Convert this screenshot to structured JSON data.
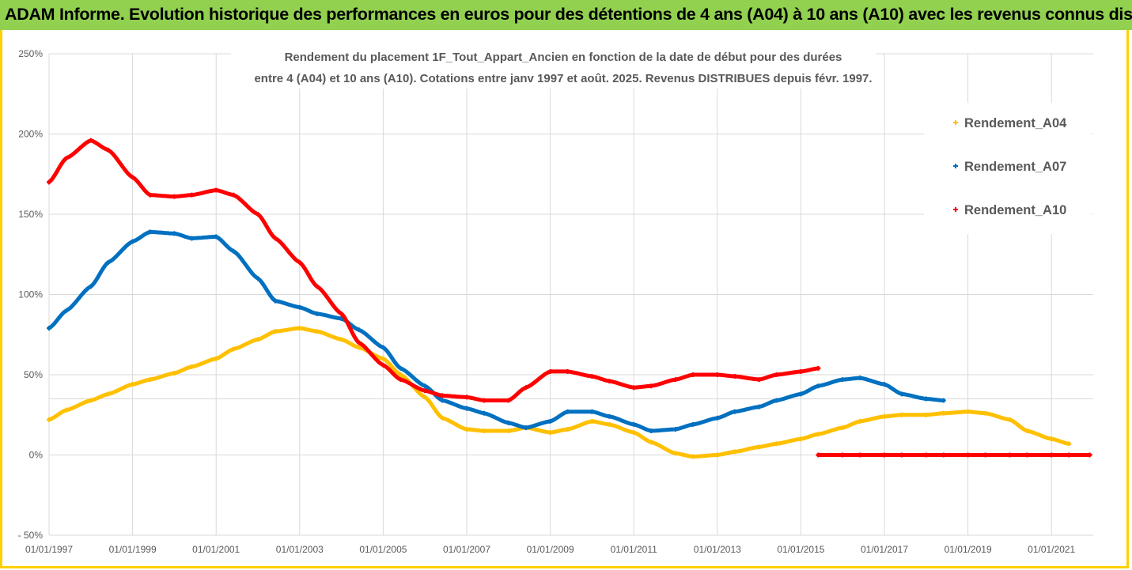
{
  "header": {
    "title": "ADAM Informe. Evolution historique des performances en euros pour des détentions de 4 ans (A04) à 10 ans (A10) avec les revenus connus distribués"
  },
  "colors": {
    "header_bg": "#92d050",
    "frame": "#ffd000",
    "grid": "#d9d9d9",
    "text": "#595959"
  },
  "chart_data": {
    "type": "scatter",
    "title_lines": [
      "Rendement du placement 1F_Tout_Appart_Ancien en fonction de la date de début pour des durées",
      "entre 4 (A04) et 10 ans (A10). Cotations entre janv 1997 et août. 2025. Revenus DISTRIBUES depuis févr. 1997."
    ],
    "xlabel": "",
    "ylabel": "",
    "x_ticks": [
      "01/01/1997",
      "01/01/1999",
      "01/01/2001",
      "01/01/2003",
      "01/01/2005",
      "01/01/2007",
      "01/01/2009",
      "01/01/2011",
      "01/01/2013",
      "01/01/2015",
      "01/01/2017",
      "01/01/2019",
      "01/01/2021"
    ],
    "y_ticks": [
      "250%",
      "200%",
      "150%",
      "100%",
      "50%",
      "0%",
      "- 50%"
    ],
    "xlim": [
      "1997-01-01",
      "2022-01-01"
    ],
    "ylim": [
      -50,
      250
    ],
    "y_unit": "%",
    "grid": true,
    "legend_position": "right",
    "series": [
      {
        "name": "Rendement_A04",
        "color": "#ffc000",
        "x": [
          "1997-01",
          "1997-06",
          "1998-01",
          "1998-06",
          "1999-01",
          "1999-06",
          "2000-01",
          "2000-06",
          "2001-01",
          "2001-06",
          "2002-01",
          "2002-06",
          "2003-01",
          "2003-06",
          "2004-01",
          "2004-06",
          "2005-01",
          "2005-06",
          "2006-01",
          "2006-06",
          "2007-01",
          "2007-06",
          "2008-01",
          "2008-06",
          "2009-01",
          "2009-06",
          "2010-01",
          "2010-06",
          "2011-01",
          "2011-06",
          "2012-01",
          "2012-06",
          "2013-01",
          "2013-06",
          "2014-01",
          "2014-06",
          "2015-01",
          "2015-06",
          "2016-01",
          "2016-06",
          "2017-01",
          "2017-06",
          "2018-01",
          "2018-06",
          "2019-01",
          "2019-06",
          "2020-01",
          "2020-06",
          "2021-01",
          "2021-06"
        ],
        "y": [
          22,
          28,
          34,
          38,
          44,
          47,
          51,
          55,
          60,
          66,
          72,
          77,
          79,
          77,
          72,
          67,
          60,
          50,
          36,
          23,
          16,
          15,
          15,
          17,
          14,
          16,
          21,
          19,
          14,
          8,
          1,
          -1,
          0,
          2,
          5,
          7,
          10,
          13,
          17,
          21,
          24,
          25,
          25,
          26,
          27,
          26,
          22,
          15,
          10,
          7
        ]
      },
      {
        "name": "Rendement_A07",
        "color": "#0070c0",
        "x": [
          "1997-01",
          "1997-06",
          "1998-01",
          "1998-06",
          "1999-01",
          "1999-06",
          "2000-01",
          "2000-06",
          "2001-01",
          "2001-06",
          "2002-01",
          "2002-06",
          "2003-01",
          "2003-06",
          "2004-01",
          "2004-06",
          "2005-01",
          "2005-06",
          "2006-01",
          "2006-06",
          "2007-01",
          "2007-06",
          "2008-01",
          "2008-06",
          "2009-01",
          "2009-06",
          "2010-01",
          "2010-06",
          "2011-01",
          "2011-06",
          "2012-01",
          "2012-06",
          "2013-01",
          "2013-06",
          "2014-01",
          "2014-06",
          "2015-01",
          "2015-06",
          "2016-01",
          "2016-06",
          "2017-01",
          "2017-06",
          "2018-01",
          "2018-06"
        ],
        "y": [
          79,
          90,
          105,
          120,
          133,
          139,
          138,
          135,
          136,
          127,
          110,
          96,
          92,
          88,
          85,
          78,
          67,
          54,
          43,
          34,
          29,
          26,
          20,
          17,
          21,
          27,
          27,
          24,
          19,
          15,
          16,
          19,
          23,
          27,
          30,
          34,
          38,
          43,
          47,
          48,
          44,
          38,
          35,
          34
        ]
      },
      {
        "name": "Rendement_A10",
        "color": "#ff0000",
        "x": [
          "1997-01",
          "1997-06",
          "1998-01",
          "1998-06",
          "1999-01",
          "1999-06",
          "2000-01",
          "2000-06",
          "2001-01",
          "2001-06",
          "2002-01",
          "2002-06",
          "2003-01",
          "2003-06",
          "2004-01",
          "2004-06",
          "2005-01",
          "2005-06",
          "2006-01",
          "2006-06",
          "2007-01",
          "2007-06",
          "2008-01",
          "2008-06",
          "2009-01",
          "2009-06",
          "2010-01",
          "2010-06",
          "2011-01",
          "2011-06",
          "2012-01",
          "2012-06",
          "2013-01",
          "2013-06",
          "2014-01",
          "2014-06",
          "2015-01",
          "2015-06"
        ],
        "y": [
          170,
          185,
          196,
          190,
          173,
          162,
          161,
          162,
          165,
          162,
          150,
          135,
          120,
          105,
          88,
          70,
          56,
          47,
          40,
          37,
          36,
          34,
          34,
          42,
          52,
          52,
          49,
          46,
          42,
          43,
          47,
          50,
          50,
          49,
          47,
          50,
          52,
          54
        ]
      },
      {
        "name": "",
        "color": "#ff0000",
        "x": [
          "2015-06",
          "2016-01",
          "2016-06",
          "2017-01",
          "2017-06",
          "2018-01",
          "2018-06",
          "2019-01",
          "2019-06",
          "2020-01",
          "2020-06",
          "2021-01",
          "2021-06",
          "2021-12"
        ],
        "y": [
          0,
          0,
          0,
          0,
          0,
          0,
          0,
          0,
          0,
          0,
          0,
          0,
          0,
          0
        ]
      }
    ]
  }
}
